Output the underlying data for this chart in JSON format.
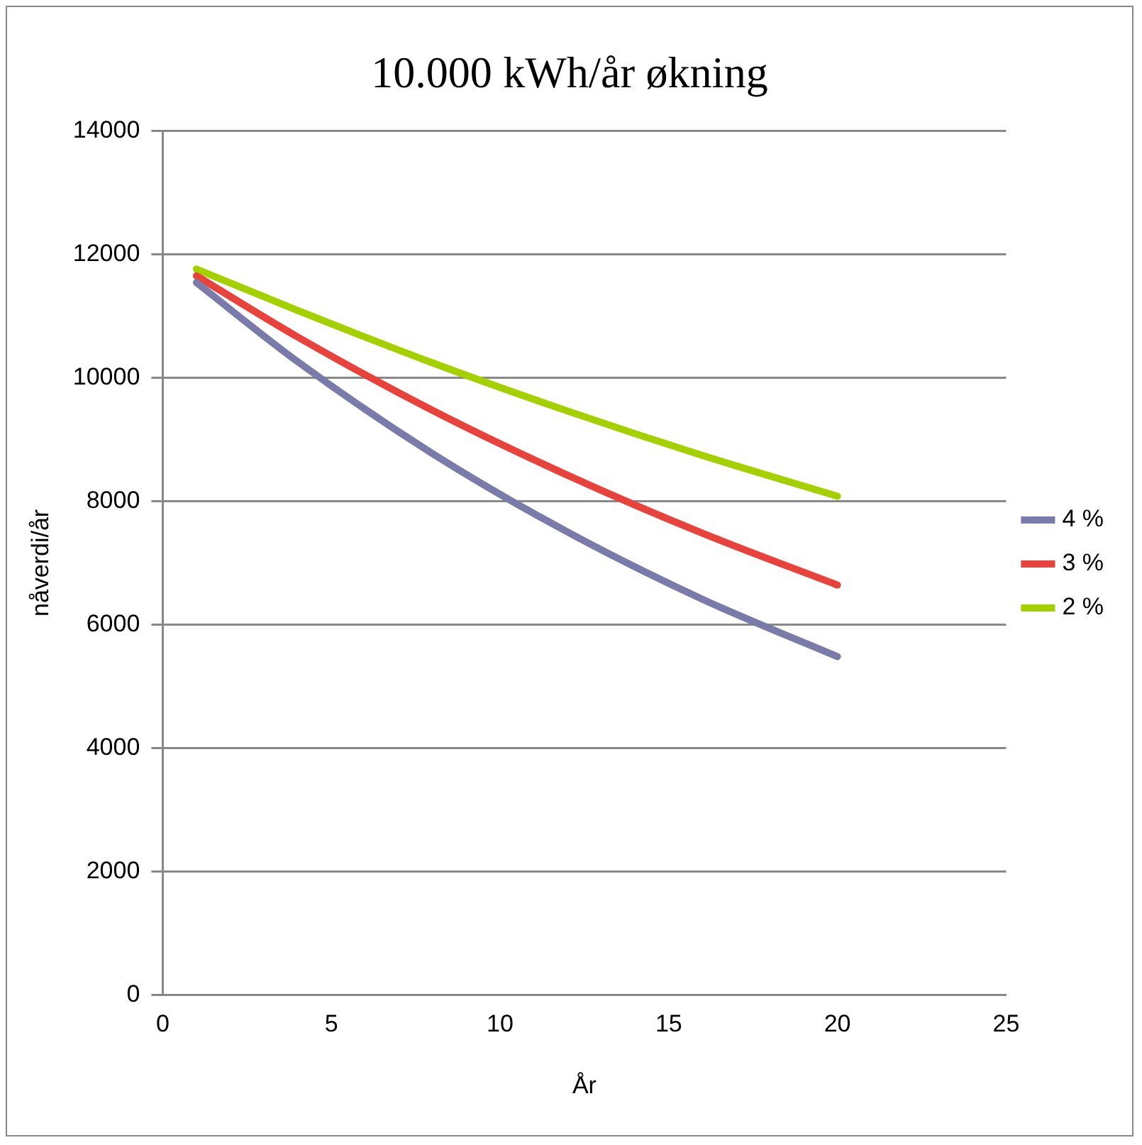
{
  "chart_data": {
    "type": "line",
    "title": "10.000 kWh/år økning",
    "xlabel": "År",
    "ylabel": "nåverdi/år",
    "xlim": [
      0,
      25
    ],
    "xticks": [
      0,
      5,
      10,
      15,
      20,
      25
    ],
    "ylim": [
      0,
      14000
    ],
    "yticks": [
      0,
      2000,
      4000,
      6000,
      8000,
      10000,
      12000,
      14000
    ],
    "grid": "y",
    "legend": "right",
    "marker": "none",
    "line_style": "solid",
    "x": [
      1,
      4,
      8,
      12,
      16,
      20
    ],
    "series": [
      {
        "name": "4 %",
        "color": "#7b7bab",
        "values": [
          11540,
          10260,
          8770,
          7500,
          6410,
          5480
        ]
      },
      {
        "name": "3 %",
        "color": "#e8423c",
        "values": [
          11650,
          10660,
          9470,
          8420,
          7480,
          6640
        ]
      },
      {
        "name": "2 %",
        "color": "#a5d000",
        "values": [
          11760,
          11090,
          10240,
          9460,
          8740,
          8080
        ]
      }
    ]
  }
}
